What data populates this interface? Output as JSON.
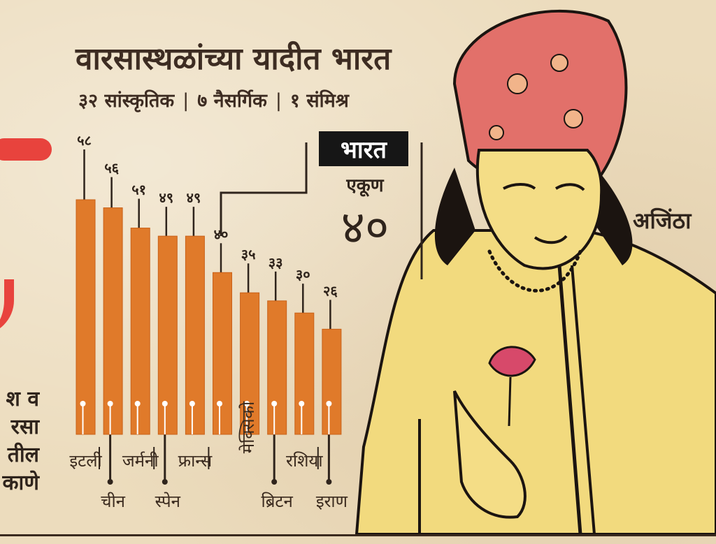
{
  "title": "वारसास्थळांच्या यादीत भारत",
  "subtitle": {
    "cultural": "३२ सांस्कृतिक",
    "natural": "७ नैसर्गिक",
    "mixed": "१ संमिश्र"
  },
  "india_box": {
    "label": "भारत",
    "total_label": "एकूण",
    "total_value": "४०"
  },
  "illustration_label": "अजिंठा",
  "left_fragment_lines": [
    "श व",
    "रसा",
    "तील",
    "काणे"
  ],
  "colors": {
    "bar": "#e07a2a",
    "bar_edge": "#c9621a",
    "accent_red": "#e8433d",
    "ink": "#2f241c"
  },
  "chart_data": {
    "type": "bar",
    "title": "वारसास्थळांच्या यादीत भारत",
    "categories": [
      "इटली",
      "चीन",
      "जर्मनी",
      "स्पेन",
      "फ्रान्स",
      "भारत",
      "मेक्सिको",
      "ब्रिटन",
      "रशिया",
      "इराण"
    ],
    "values": [
      58,
      56,
      51,
      49,
      49,
      40,
      35,
      33,
      30,
      26
    ],
    "value_labels": [
      "५८",
      "५६",
      "५१",
      "४९",
      "४९",
      "४०",
      "३५",
      "३३",
      "३०",
      "२६"
    ],
    "category_label_rows": [
      "top",
      "bottom",
      "top",
      "bottom",
      "top",
      "none",
      "vertical",
      "bottom",
      "top",
      "bottom"
    ],
    "ylim": [
      0,
      58
    ],
    "grid": false,
    "legend": "none"
  }
}
